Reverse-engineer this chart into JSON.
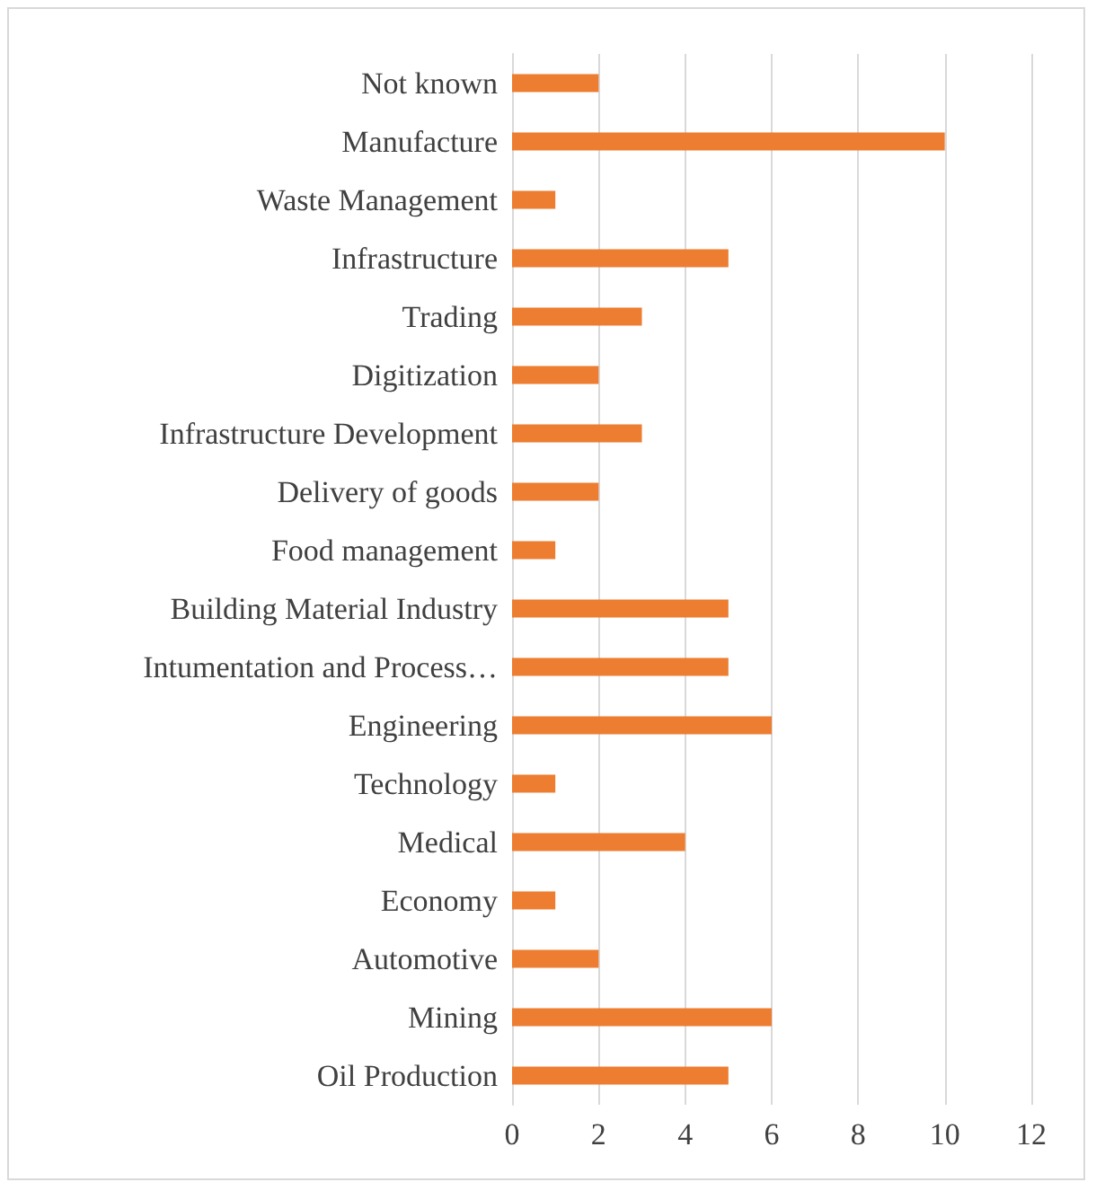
{
  "chart_data": {
    "type": "bar",
    "orientation": "horizontal",
    "categories": [
      "Not known",
      "Manufacture",
      "Waste Management",
      "Infrastructure",
      "Trading",
      "Digitization",
      "Infrastructure Development",
      "Delivery of goods",
      "Food management",
      "Building Material Industry",
      "Intumentation and Process…",
      "Engineering",
      "Technology",
      "Medical",
      "Economy",
      "Automotive",
      "Mining",
      "Oil Production"
    ],
    "values": [
      2,
      10,
      1,
      5,
      3,
      2,
      3,
      2,
      1,
      5,
      5,
      6,
      1,
      4,
      1,
      2,
      6,
      5
    ],
    "color": "#ed7d31",
    "xlim": [
      0,
      12
    ],
    "xticks": [
      0,
      2,
      4,
      6,
      8,
      10,
      12
    ],
    "grid": "x"
  }
}
